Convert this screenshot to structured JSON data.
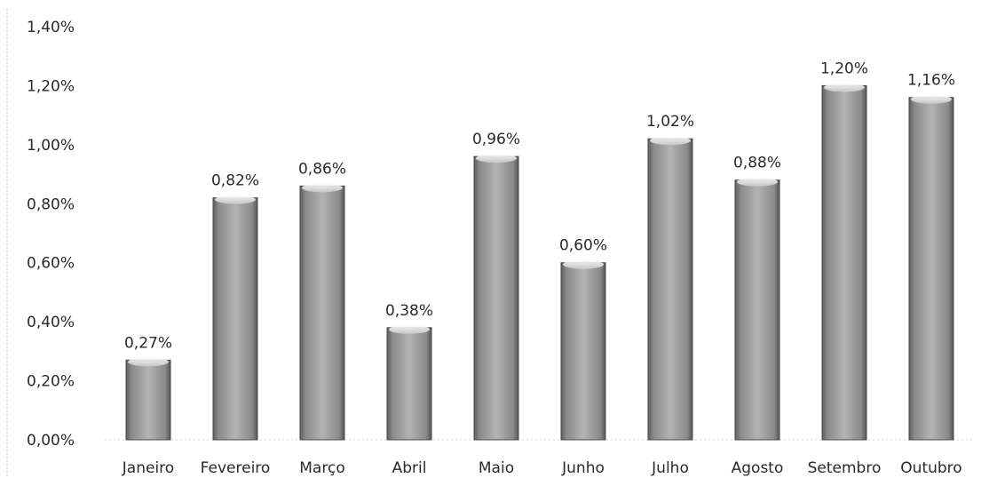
{
  "chart_data": {
    "type": "bar",
    "categories": [
      "Janeiro",
      "Fevereiro",
      "Março",
      "Abril",
      "Maio",
      "Junho",
      "Julho",
      "Agosto",
      "Setembro",
      "Outubro"
    ],
    "values": [
      0.27,
      0.82,
      0.86,
      0.38,
      0.96,
      0.6,
      1.02,
      0.88,
      1.2,
      1.16
    ],
    "data_labels": [
      "0,27%",
      "0,82%",
      "0,86%",
      "0,38%",
      "0,96%",
      "0,60%",
      "1,02%",
      "0,88%",
      "1,20%",
      "1,16%"
    ],
    "y_ticks": [
      0.0,
      0.2,
      0.4,
      0.6,
      0.8,
      1.0,
      1.2,
      1.4
    ],
    "y_tick_labels": [
      "0,00%",
      "0,20%",
      "0,40%",
      "0,60%",
      "0,80%",
      "1,00%",
      "1,20%",
      "1,40%"
    ],
    "ylim": [
      0,
      1.4
    ],
    "unit": "%",
    "grid": false,
    "legend": "none",
    "bar_color": "#8c8c8c"
  }
}
